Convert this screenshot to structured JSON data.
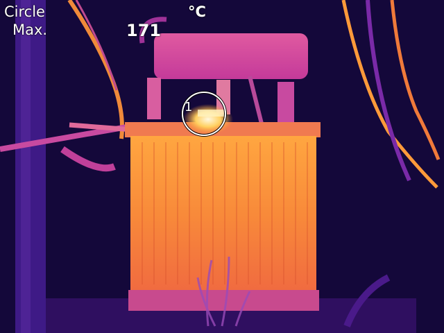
{
  "overlay": {
    "mode_label": "Circle",
    "stat_label": "Max.",
    "unit": "°C",
    "max_value": "171",
    "spot_number": "1"
  },
  "palette": {
    "background": "#14083a",
    "cold": "#2a0a6e",
    "cool": "#6a1fb0",
    "mid": "#c0369a",
    "warm": "#f07a2c",
    "hot": "#ffb83a",
    "hottest": "#fff6d0"
  }
}
